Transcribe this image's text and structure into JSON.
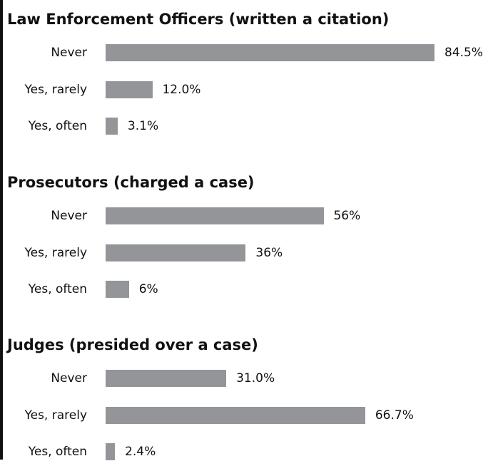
{
  "colors": {
    "bar": "#939598",
    "text": "#111111",
    "rule": "#111111",
    "background": "#ffffff"
  },
  "chart_data": [
    {
      "type": "bar",
      "orientation": "horizontal",
      "title": "Law Enforcement Officers (written a citation)",
      "categories": [
        "Never",
        "Yes, rarely",
        "Yes, often"
      ],
      "values": [
        84.5,
        12.0,
        3.1
      ],
      "value_labels": [
        "84.5%",
        "12.0%",
        "3.1%"
      ],
      "unit": "%",
      "xlim": [
        0,
        100
      ],
      "grid": false
    },
    {
      "type": "bar",
      "orientation": "horizontal",
      "title": "Prosecutors (charged a case)",
      "categories": [
        "Never",
        "Yes, rarely",
        "Yes, often"
      ],
      "values": [
        56,
        36,
        6
      ],
      "value_labels": [
        "56%",
        "36%",
        "6%"
      ],
      "unit": "%",
      "xlim": [
        0,
        100
      ],
      "grid": false
    },
    {
      "type": "bar",
      "orientation": "horizontal",
      "title": "Judges (presided over a case)",
      "categories": [
        "Never",
        "Yes, rarely",
        "Yes, often"
      ],
      "values": [
        31.0,
        66.7,
        2.4
      ],
      "value_labels": [
        "31.0%",
        "66.7%",
        "2.4%"
      ],
      "unit": "%",
      "xlim": [
        0,
        100
      ],
      "grid": false
    }
  ]
}
